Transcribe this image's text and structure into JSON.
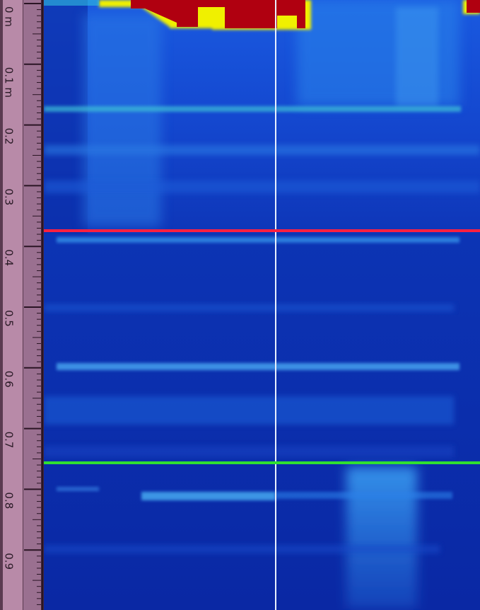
{
  "ruler": {
    "labels": [
      "0 m",
      "0.1 m",
      "0.2",
      "0.3",
      "0.4",
      "0.5",
      "0.6",
      "0.7",
      "0.8",
      "0.9"
    ]
  }
}
